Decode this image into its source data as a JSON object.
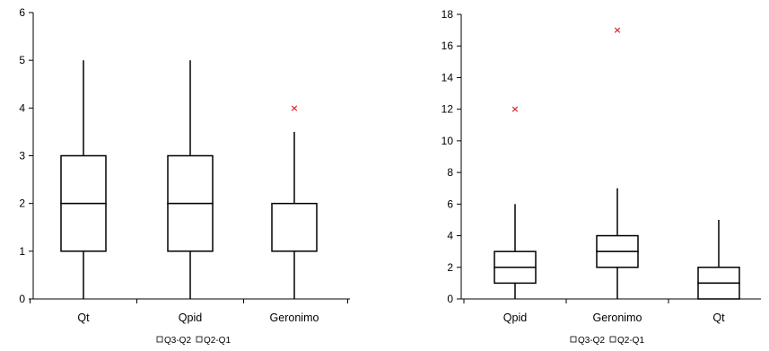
{
  "chart_data": [
    {
      "type": "box",
      "ylim": [
        0,
        6
      ],
      "yticks": [
        0,
        1,
        2,
        3,
        4,
        5,
        6
      ],
      "categories": [
        "Qt",
        "Qpid",
        "Geronimo"
      ],
      "boxes": [
        {
          "category": "Qt",
          "min": 0,
          "q1": 1,
          "median": 2,
          "q3": 3,
          "max": 5,
          "outliers": []
        },
        {
          "category": "Qpid",
          "min": 0,
          "q1": 1,
          "median": 2,
          "q3": 3,
          "max": 5,
          "outliers": []
        },
        {
          "category": "Geronimo",
          "min": 0,
          "q1": 1,
          "median": 2,
          "q3": 2,
          "max": 3.5,
          "outliers": [
            4
          ]
        }
      ],
      "legend": [
        "Q3-Q2",
        "Q2-Q1"
      ],
      "legend_position": "bottom",
      "grid": false
    },
    {
      "type": "box",
      "ylim": [
        0,
        18
      ],
      "yticks": [
        0,
        2,
        4,
        6,
        8,
        10,
        12,
        14,
        16,
        18
      ],
      "categories": [
        "Qpid",
        "Geronimo",
        "Qt"
      ],
      "boxes": [
        {
          "category": "Qpid",
          "min": 0,
          "q1": 1,
          "median": 2,
          "q3": 3,
          "max": 6,
          "outliers": [
            12
          ]
        },
        {
          "category": "Geronimo",
          "min": 0,
          "q1": 2,
          "median": 3,
          "q3": 4,
          "max": 7,
          "outliers": [
            17
          ]
        },
        {
          "category": "Qt",
          "min": 0,
          "q1": 0,
          "median": 1,
          "q3": 2,
          "max": 5,
          "outliers": []
        }
      ],
      "legend": [
        "Q3-Q2",
        "Q2-Q1"
      ],
      "legend_position": "bottom",
      "grid": false
    }
  ],
  "colors": {
    "axis": "#000000",
    "box_fill": "#ffffff",
    "outlier": "#e03030"
  }
}
